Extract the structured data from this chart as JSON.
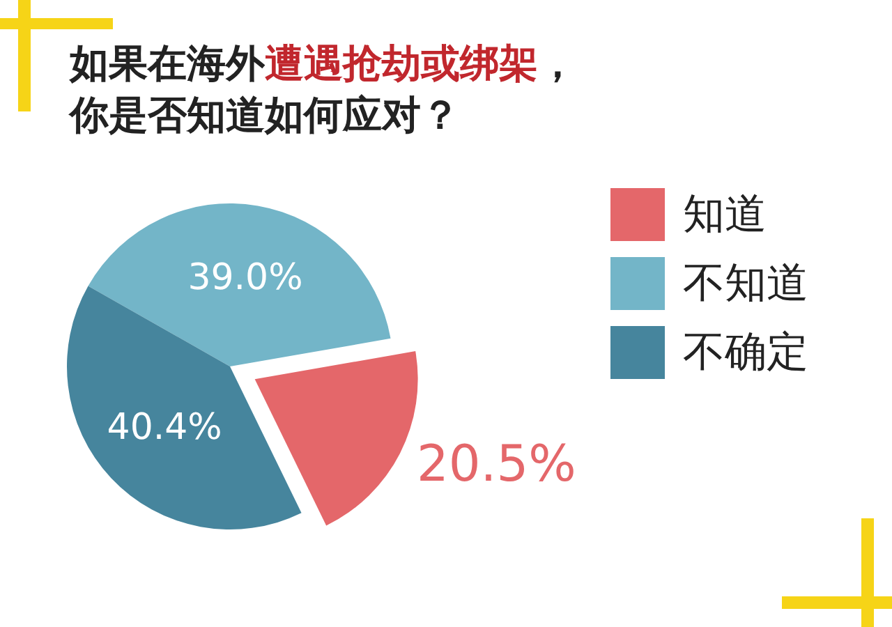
{
  "chart_data": {
    "type": "pie",
    "title": "如果在海外**遭遇抢劫或绑架**，你是否知道如何应对？",
    "categories": [
      "知道",
      "不知道",
      "不确定"
    ],
    "values": [
      20.5,
      39.0,
      40.4
    ],
    "colors": [
      "#e4676a",
      "#73b5c8",
      "#46859d"
    ],
    "value_labels": [
      "20.5%",
      "39.0%",
      "40.4%"
    ],
    "legend": "right"
  }
}
